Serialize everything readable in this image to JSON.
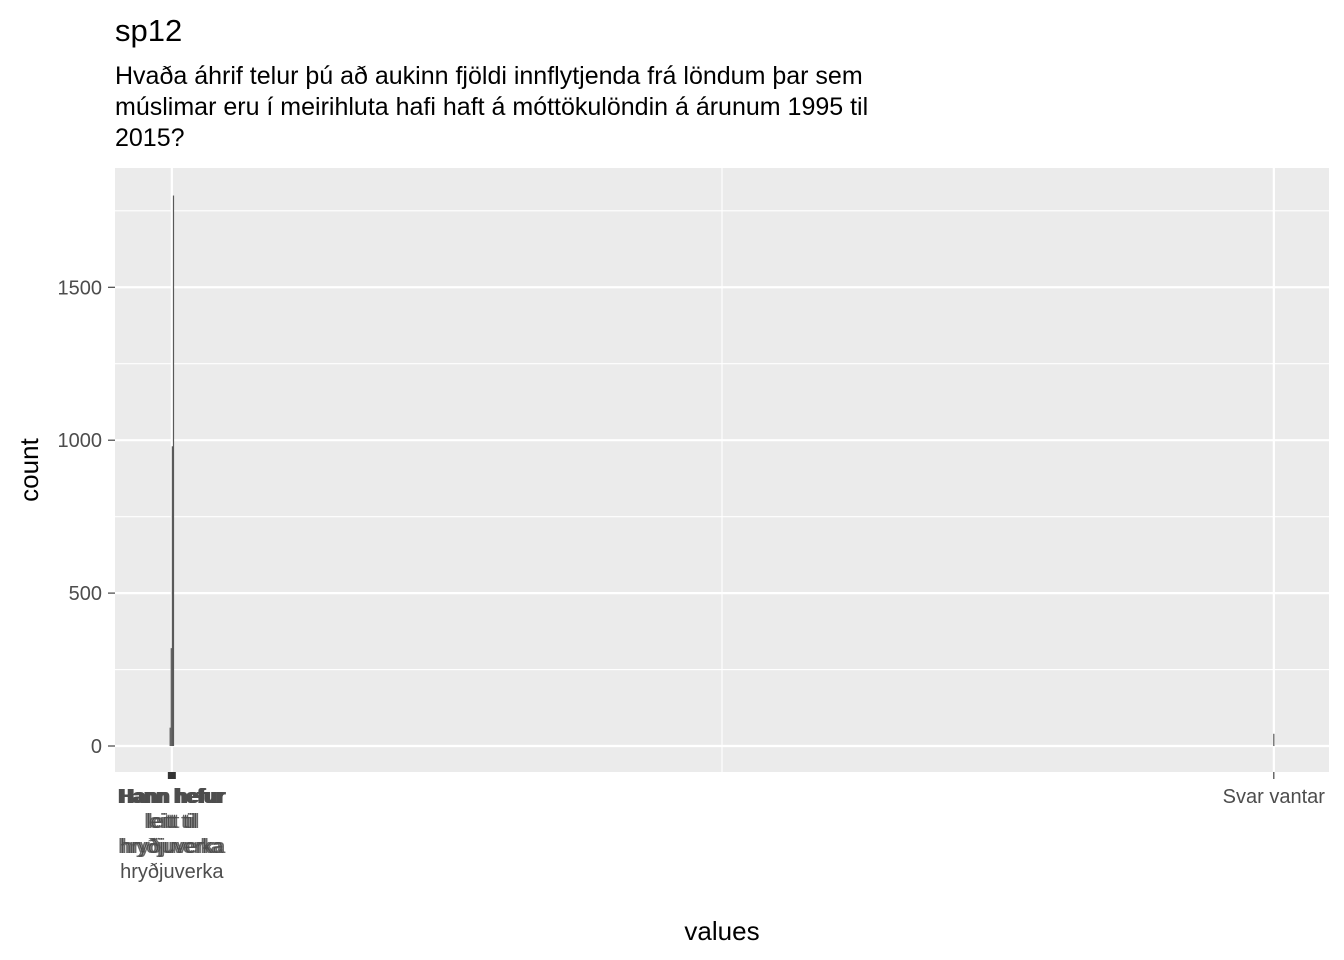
{
  "chart_data": {
    "type": "bar",
    "title": "sp12",
    "subtitle": [
      "Hvaða áhrif telur þú að aukinn fjöldi innflytjenda frá löndum þar sem",
      "múslimar eru í meirihluta hafi haft á móttökulöndin á árunum 1995 til",
      "2015?"
    ],
    "xlabel": "values",
    "ylabel": "count",
    "ylim": [
      -85,
      1890
    ],
    "y_ticks": [
      0,
      500,
      1000,
      1500
    ],
    "grid": true,
    "series": [
      {
        "values": [
          60,
          320,
          980,
          1800,
          40
        ]
      }
    ],
    "x_positions": [
      0.0,
      0.001,
      0.002,
      0.003,
      1.0
    ],
    "xlim": [
      -0.05,
      1.05
    ],
    "x_tick_labels": [
      {
        "x": 0.0015,
        "head": "Hann hefur",
        "lines": [
          "leitt til",
          "hryðjuverka",
          "hryðjuverka"
        ],
        "overlap": true
      },
      {
        "x": 1.0,
        "head": "",
        "lines": [
          "Svar vantar"
        ],
        "overlap": false
      }
    ],
    "colors": {
      "panel": "#ebebeb",
      "grid": "#ffffff",
      "bar": "#595959",
      "tick": "#333333"
    }
  }
}
